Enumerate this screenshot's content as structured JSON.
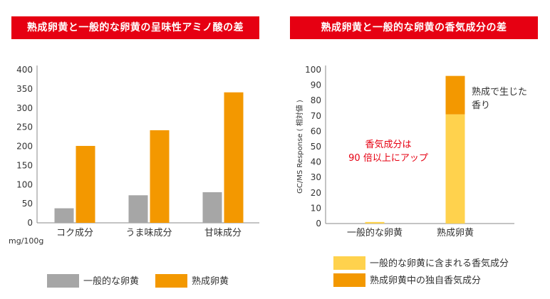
{
  "banners": {
    "left": "熟成卵黄と一般的な卵黄の呈味性アミノ酸の差",
    "right": "熟成卵黄と一般的な卵黄の香気成分の差"
  },
  "colors": {
    "banner": "#e60012",
    "regular": "#a6a6a6",
    "aged": "#f39800",
    "light": "#ffd24d",
    "annotation": "#e60012"
  },
  "chart_data": [
    {
      "type": "bar",
      "title": "熟成卵黄と一般的な卵黄の呈味性アミノ酸の差",
      "categories": [
        "コク成分",
        "うま味成分",
        "甘味成分"
      ],
      "series": [
        {
          "name": "一般的な卵黄",
          "values": [
            38,
            72,
            80
          ]
        },
        {
          "name": "熟成卵黄",
          "values": [
            201,
            242,
            341
          ]
        }
      ],
      "ylim": [
        0,
        400
      ],
      "yticks": [
        "0",
        "50",
        "100",
        "150",
        "200",
        "250",
        "300",
        "350",
        "400"
      ],
      "unit": "mg/100g",
      "grid": false
    },
    {
      "type": "bar",
      "stacked": true,
      "title": "熟成卵黄と一般的な卵黄の香気成分の差",
      "ylabel": "GC/MS Response ( 相対値 )",
      "categories": [
        "一般的な卵黄",
        "熟成卵黄"
      ],
      "series": [
        {
          "name": "一般的な卵黄に含まれる香気成分",
          "values": [
            1,
            71
          ]
        },
        {
          "name": "熟成卵黄中の独自香気成分",
          "values": [
            0,
            25
          ]
        }
      ],
      "ylim": [
        0,
        100
      ],
      "yticks": [
        "0",
        "10",
        "20",
        "30",
        "40",
        "50",
        "60",
        "70",
        "80",
        "90",
        "100"
      ],
      "grid": false,
      "annotations": [
        "香気成分は",
        "90 倍以上にアップ",
        "熟成で生じた",
        "香り"
      ]
    }
  ]
}
